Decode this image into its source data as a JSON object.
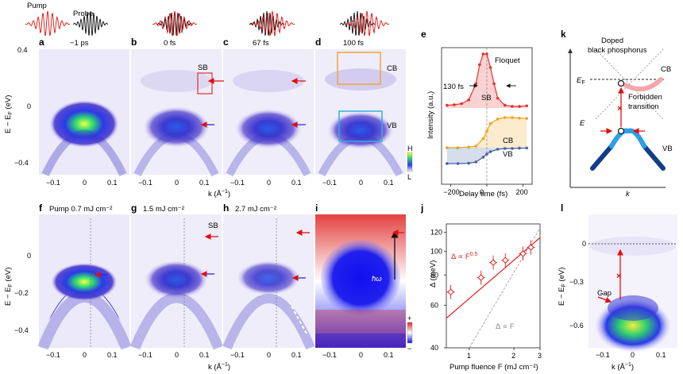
{
  "colors": {
    "red_arrow": "#e01010",
    "blue_arrow": "#1a2ee8",
    "floquet": "#e83030",
    "cb_fit": "#f4a21a",
    "vb_fit": "#4363a6",
    "sb_box": "#e03030",
    "cb_box": "#f4a436",
    "vb_box": "#33aee0",
    "fit_line": "#e02020",
    "linear_line": "#999999"
  },
  "pulses": {
    "pump_label": "Pump",
    "probe_label": "Probe"
  },
  "panels_top": [
    {
      "letter": "a",
      "delay": "−1 ps"
    },
    {
      "letter": "b",
      "delay": "0 fs"
    },
    {
      "letter": "c",
      "delay": "67 fs"
    },
    {
      "letter": "d",
      "delay": "100 fs"
    }
  ],
  "panels_bottom": [
    {
      "letter": "f",
      "fluence": "Pump 0.7 mJ cm⁻²"
    },
    {
      "letter": "g",
      "fluence": "1.5 mJ cm⁻²"
    },
    {
      "letter": "h",
      "fluence": "2.7 mJ cm⁻²"
    },
    {
      "letter": "i",
      "fluence": ""
    }
  ],
  "arpes": {
    "y_label": "E − E",
    "y_label_sub": "F",
    "y_label_unit": " (eV)",
    "x_label": "k (Å",
    "x_label_sup": "−1",
    "x_label_end": ")",
    "x_ticks": [
      "−0.1",
      "0",
      "0.1"
    ],
    "y_ticks_top": [
      "0.4",
      "0",
      "−0.4"
    ],
    "y_ticks_bottom": [
      "0",
      "−0.2",
      "−0.4"
    ],
    "sb_label": "SB",
    "cb_label": "CB",
    "vb_label": "VB",
    "hbar_omega": "ħω",
    "colorbar_high": "H",
    "colorbar_low": "L",
    "diff_plus": "+",
    "diff_minus": "−"
  },
  "panel_e": {
    "letter": "e",
    "y_label": "Intensity (a.u.)",
    "x_label": "Delay time (fs)",
    "x_ticks": [
      "−200",
      "0",
      "200"
    ],
    "floquet_label": "Floquet",
    "width_label": "130 fs",
    "sb_label": "SB",
    "cb_label": "CB",
    "vb_label": "VB"
  },
  "panel_j": {
    "letter": "j",
    "y_label": "Δ (meV)",
    "x_label": "Pump fluence F (mJ cm⁻²)",
    "y_ticks": [
      "120",
      "100",
      "80",
      "60",
      "40"
    ],
    "x_ticks": [
      "1",
      "2",
      "3"
    ],
    "fit_label": "Δ ∝ F",
    "fit_exp": "0.5",
    "linear_label": "Δ ∝ F"
  },
  "panel_k": {
    "letter": "k",
    "title_line1": "Doped",
    "title_line2": "black phosphorus",
    "ef_label": "E",
    "ef_sub": "F",
    "e_axis": "E",
    "k_axis": "k",
    "cb_label": "CB",
    "vb_label": "VB",
    "forbidden_line1": "Forbidden",
    "forbidden_line2": "transition"
  },
  "panel_l": {
    "letter": "l",
    "y_label": "E − E",
    "y_label_sub": "F",
    "y_label_unit": " (eV)",
    "x_label": "k (Å",
    "x_label_sup": "−1",
    "x_label_end": ")",
    "y_ticks": [
      "0",
      "−0.3",
      "−0.6"
    ],
    "x_ticks": [
      "−0.1",
      "0",
      "0.1"
    ],
    "gap_label": "Gap"
  },
  "chart_data": [
    {
      "type": "line",
      "panel": "e",
      "xlabel": "Delay time (fs)",
      "ylabel": "Intensity (a.u.)",
      "xlim": [
        -250,
        250
      ],
      "series": [
        {
          "name": "SB",
          "x": [
            -220,
            -180,
            -140,
            -100,
            -60,
            -40,
            -20,
            0,
            20,
            40,
            60,
            100,
            140,
            180,
            220
          ],
          "values": [
            0.05,
            0.06,
            0.08,
            0.15,
            0.45,
            0.8,
            1.0,
            1.0,
            0.75,
            0.45,
            0.18,
            0.05,
            0.03,
            0.03,
            0.04
          ]
        },
        {
          "name": "CB",
          "x": [
            -220,
            -160,
            -100,
            -60,
            -20,
            0,
            20,
            60,
            100,
            140,
            180,
            220
          ],
          "values": [
            0.0,
            0.0,
            0.02,
            0.05,
            0.3,
            0.55,
            0.8,
            0.95,
            1.0,
            1.0,
            0.98,
            0.97
          ]
        },
        {
          "name": "VB",
          "x": [
            -220,
            -160,
            -100,
            -60,
            -20,
            0,
            20,
            60,
            100,
            140,
            180,
            220
          ],
          "values": [
            1.0,
            1.0,
            0.98,
            0.9,
            0.6,
            0.4,
            0.25,
            0.1,
            0.05,
            0.05,
            0.03,
            0.02
          ]
        }
      ]
    },
    {
      "type": "scatter",
      "panel": "j",
      "xlabel": "Pump fluence F (mJ cm⁻²)",
      "ylabel": "Δ (meV)",
      "x_scale": "log",
      "y_scale": "log",
      "xlim": [
        0.7,
        3
      ],
      "ylim": [
        40,
        130
      ],
      "x": [
        0.75,
        1.2,
        1.45,
        1.75,
        2.3,
        2.6
      ],
      "values": [
        68,
        78,
        90,
        92,
        98,
        104
      ]
    }
  ]
}
